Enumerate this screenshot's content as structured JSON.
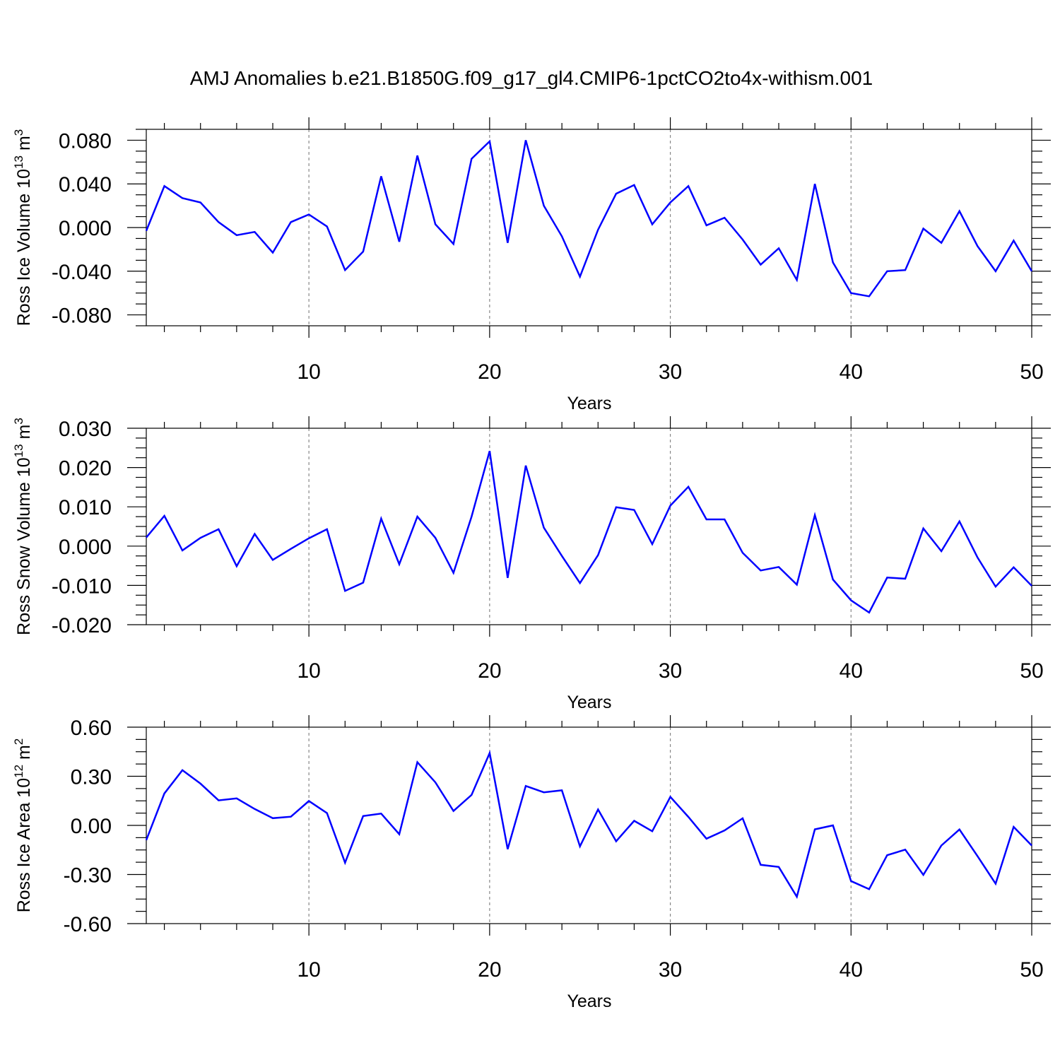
{
  "chart_data": {
    "type": "line",
    "title": "AMJ Anomalies b.e21.B1850G.f09_g17_gl4.CMIP6-1pctCO2to4x-withism.001",
    "line_color": "#0000ff",
    "panels": [
      {
        "name": "ross-ice-volume",
        "ylabel": "Ross Ice Volume 10",
        "ylabel_exp": "13",
        "ylabel_unit": " m",
        "ylabel_unit_exp": "3",
        "xlabel": "Years",
        "xlim": [
          1,
          50
        ],
        "ylim": [
          -0.09,
          0.09
        ],
        "x_ticks": [
          10,
          20,
          30,
          40,
          50
        ],
        "x_tick_labels": [
          "10",
          "20",
          "30",
          "40",
          "50"
        ],
        "y_ticks": [
          0.08,
          0.04,
          0.0,
          -0.04,
          -0.08
        ],
        "y_tick_labels": [
          "0.080",
          "0.040",
          "0.000",
          "-0.040",
          "-0.080"
        ],
        "grid_x": [
          10,
          20,
          30,
          40
        ],
        "x": [
          1,
          2,
          3,
          4,
          5,
          6,
          7,
          8,
          9,
          10,
          11,
          12,
          13,
          14,
          15,
          16,
          17,
          18,
          19,
          20,
          21,
          22,
          23,
          24,
          25,
          26,
          27,
          28,
          29,
          30,
          31,
          32,
          33,
          34,
          35,
          36,
          37,
          38,
          39,
          40,
          41,
          42,
          43,
          44,
          45,
          46,
          47,
          48,
          49,
          50
        ],
        "y": [
          -0.003,
          0.038,
          0.027,
          0.023,
          0.005,
          -0.007,
          -0.004,
          -0.023,
          0.005,
          0.012,
          0.001,
          -0.039,
          -0.022,
          0.047,
          -0.013,
          0.066,
          0.003,
          -0.015,
          0.063,
          0.079,
          -0.014,
          0.08,
          0.02,
          -0.008,
          -0.045,
          -0.002,
          0.031,
          0.039,
          0.003,
          0.023,
          0.038,
          0.002,
          0.009,
          -0.011,
          -0.034,
          -0.019,
          -0.048,
          0.04,
          -0.032,
          -0.06,
          -0.063,
          -0.04,
          -0.039,
          -0.001,
          -0.014,
          0.015,
          -0.017,
          -0.04,
          -0.012,
          -0.04
        ]
      },
      {
        "name": "ross-snow-volume",
        "ylabel": "Ross Snow Volume 10",
        "ylabel_exp": "13",
        "ylabel_unit": " m",
        "ylabel_unit_exp": "3",
        "xlabel": "Years",
        "xlim": [
          1,
          50
        ],
        "ylim": [
          -0.02,
          0.03
        ],
        "x_ticks": [
          10,
          20,
          30,
          40,
          50
        ],
        "x_tick_labels": [
          "10",
          "20",
          "30",
          "40",
          "50"
        ],
        "y_ticks": [
          0.03,
          0.02,
          0.01,
          0.0,
          -0.01,
          -0.02
        ],
        "y_tick_labels": [
          "0.030",
          "0.020",
          "0.010",
          "0.000",
          "-0.010",
          "-0.020"
        ],
        "grid_x": [
          10,
          20,
          30,
          40
        ],
        "x": [
          1,
          2,
          3,
          4,
          5,
          6,
          7,
          8,
          9,
          10,
          11,
          12,
          13,
          14,
          15,
          16,
          17,
          18,
          19,
          20,
          21,
          22,
          23,
          24,
          25,
          26,
          27,
          28,
          29,
          30,
          31,
          32,
          33,
          34,
          35,
          36,
          37,
          38,
          39,
          40,
          41,
          42,
          43,
          44,
          45,
          46,
          47,
          48,
          49,
          50
        ],
        "y": [
          0.0022,
          0.0077,
          -0.0011,
          0.0021,
          0.0043,
          -0.0051,
          0.0031,
          -0.0035,
          -0.0007,
          0.002,
          0.0043,
          -0.0114,
          -0.0093,
          0.007,
          -0.0046,
          0.0075,
          0.0021,
          -0.0068,
          0.0075,
          0.0242,
          -0.0081,
          0.0205,
          0.0047,
          -0.0025,
          -0.0094,
          -0.0023,
          0.0099,
          0.0092,
          0.0005,
          0.0103,
          0.0151,
          0.0068,
          0.0068,
          -0.0017,
          -0.0062,
          -0.0053,
          -0.0098,
          0.0079,
          -0.0085,
          -0.0138,
          -0.0169,
          -0.008,
          -0.0083,
          0.0045,
          -0.0013,
          0.0063,
          -0.0029,
          -0.0103,
          -0.0054,
          -0.0101
        ]
      },
      {
        "name": "ross-ice-area",
        "ylabel": "Ross Ice Area 10",
        "ylabel_exp": "12",
        "ylabel_unit": " m",
        "ylabel_unit_exp": "2",
        "xlabel": "Years",
        "xlim": [
          1,
          50
        ],
        "ylim": [
          -0.6,
          0.6
        ],
        "x_ticks": [
          10,
          20,
          30,
          40,
          50
        ],
        "x_tick_labels": [
          "10",
          "20",
          "30",
          "40",
          "50"
        ],
        "y_ticks": [
          0.6,
          0.3,
          0.0,
          -0.3,
          -0.6
        ],
        "y_tick_labels": [
          "0.60",
          "0.30",
          "0.00",
          "-0.30",
          "-0.60"
        ],
        "grid_x": [
          10,
          20,
          30,
          40
        ],
        "x": [
          1,
          2,
          3,
          4,
          5,
          6,
          7,
          8,
          9,
          10,
          11,
          12,
          13,
          14,
          15,
          16,
          17,
          18,
          19,
          20,
          21,
          22,
          23,
          24,
          25,
          26,
          27,
          28,
          29,
          30,
          31,
          32,
          33,
          34,
          35,
          36,
          37,
          38,
          39,
          40,
          41,
          42,
          43,
          44,
          45,
          46,
          47,
          48,
          49,
          50
        ],
        "y": [
          -0.09,
          0.195,
          0.337,
          0.255,
          0.153,
          0.165,
          0.1,
          0.044,
          0.053,
          0.149,
          0.075,
          -0.228,
          0.057,
          0.072,
          -0.054,
          0.386,
          0.263,
          0.088,
          0.186,
          0.442,
          -0.145,
          0.241,
          0.202,
          0.214,
          -0.128,
          0.097,
          -0.097,
          0.028,
          -0.036,
          0.174,
          0.052,
          -0.081,
          -0.031,
          0.043,
          -0.241,
          -0.254,
          -0.436,
          -0.024,
          0.0,
          -0.34,
          -0.39,
          -0.182,
          -0.148,
          -0.302,
          -0.123,
          -0.025,
          -0.188,
          -0.356,
          -0.009,
          -0.123
        ]
      }
    ]
  }
}
